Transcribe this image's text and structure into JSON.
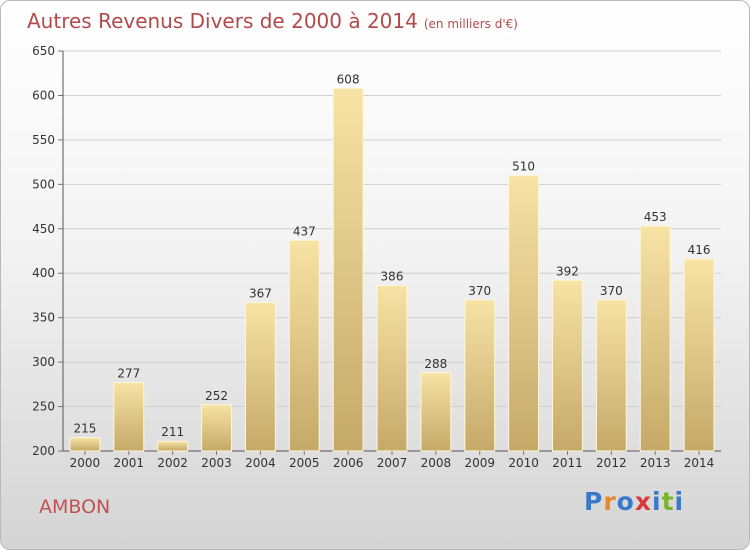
{
  "title": "Autres Revenus Divers de 2000 à 2014",
  "unit": "(en milliers d'€)",
  "commune": "AMBON",
  "brand": "Proxiti",
  "colors": {
    "bar_top": "#f7e3a4",
    "bar_bottom": "#c5a969",
    "title": "#b24a4a",
    "grid": "#cfcfcf"
  },
  "chart_data": {
    "type": "bar",
    "categories": [
      "2000",
      "2001",
      "2002",
      "2003",
      "2004",
      "2005",
      "2006",
      "2007",
      "2008",
      "2009",
      "2010",
      "2011",
      "2012",
      "2013",
      "2014"
    ],
    "values": [
      215,
      277,
      211,
      252,
      367,
      437,
      608,
      386,
      288,
      370,
      510,
      392,
      370,
      453,
      416
    ],
    "ylim": [
      200,
      650
    ],
    "yticks": [
      200,
      250,
      300,
      350,
      400,
      450,
      500,
      550,
      600,
      650
    ],
    "grid": true
  }
}
